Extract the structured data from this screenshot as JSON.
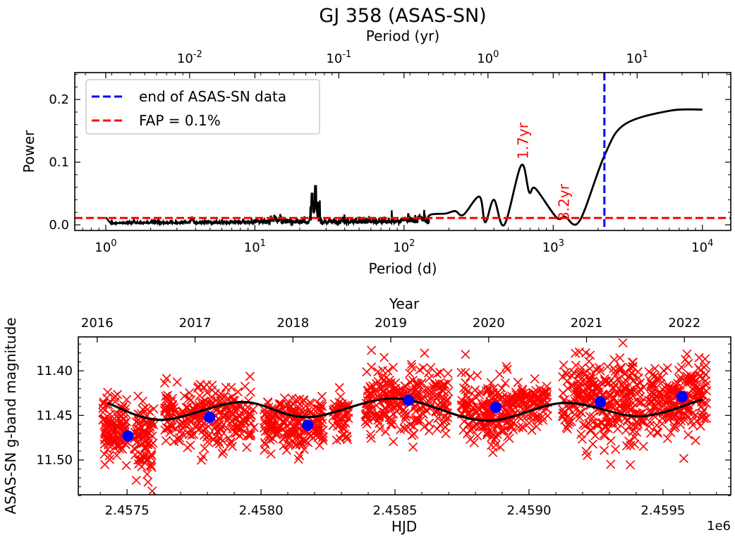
{
  "title": "GJ 358 (ASAS-SN)",
  "colors": {
    "curve": "#000000",
    "fap": "#ff0000",
    "end": "#0000ff",
    "points": "#ff0000",
    "bins": "#0000ff"
  },
  "chart_data": [
    {
      "type": "line",
      "title": "GJ 358 (ASAS-SN)",
      "xlabel": "Period (d)",
      "xlabel_top": "Period (yr)",
      "ylabel": "Power",
      "xscale": "log",
      "xlim": [
        0.62,
        15500
      ],
      "ylim": [
        -0.009,
        0.243
      ],
      "x_ticks_exp": [
        0,
        1,
        2,
        3,
        4
      ],
      "x_top_ticks_exp": [
        -2,
        -1,
        0,
        1
      ],
      "y_ticks": [
        "0.0",
        "0.1",
        "0.2"
      ],
      "y_tick_values": [
        0.0,
        0.1,
        0.2
      ],
      "power_curve": [
        [
          1,
          0.012
        ],
        [
          1.1,
          0.002
        ],
        [
          3.8,
          0.008
        ],
        [
          14,
          0.01
        ],
        [
          24,
          0.05
        ],
        [
          25.5,
          0.062
        ],
        [
          150,
          0.016
        ],
        [
          190,
          0.018
        ],
        [
          220,
          0.022
        ],
        [
          250,
          0.016
        ],
        [
          320,
          0.045
        ],
        [
          350,
          0.004
        ],
        [
          400,
          0.04
        ],
        [
          470,
          0.0
        ],
        [
          610,
          0.095
        ],
        [
          690,
          0.052
        ],
        [
          760,
          0.058
        ],
        [
          1050,
          0.012
        ],
        [
          1200,
          0.013
        ],
        [
          1500,
          0.006
        ],
        [
          2200,
          0.11
        ],
        [
          3000,
          0.16
        ],
        [
          6000,
          0.182
        ],
        [
          10000,
          0.184
        ]
      ],
      "fap_level": 0.011,
      "end_of_data_period_d": 2203,
      "legend": {
        "position": "top-left",
        "entries": [
          "end of ASAS-SN data",
          "FAP = 0.1%"
        ]
      },
      "annotations": [
        {
          "text": "1.7yr",
          "period_d": 620
        },
        {
          "text": "3.2yr",
          "period_d": 1170
        }
      ]
    },
    {
      "type": "scatter",
      "xlabel": "HJD",
      "xlabel_top": "Year",
      "ylabel": "ASAS-SN g-band magnitude",
      "offset_label": "1e6",
      "xlim": [
        2457318,
        2459753
      ],
      "ylim": [
        11.539,
        11.362
      ],
      "x_ticks": [
        "2.4575",
        "2.4580",
        "2.4585",
        "2.4590",
        "2.4595"
      ],
      "x_tick_values": [
        2457500,
        2458000,
        2458500,
        2459000,
        2459500
      ],
      "year_ticks": [
        "2016",
        "2017",
        "2018",
        "2019",
        "2020",
        "2021",
        "2022"
      ],
      "y_ticks": [
        "11.40",
        "11.45",
        "11.50"
      ],
      "y_tick_values": [
        11.4,
        11.45,
        11.5
      ],
      "seasons": [
        {
          "start": 2457408,
          "end": 2457500,
          "mean": 11.465,
          "sd": 0.018,
          "n": 110
        },
        {
          "start": 2457526,
          "end": 2457600,
          "mean": 11.475,
          "sd": 0.022,
          "n": 90
        },
        {
          "start": 2457639,
          "end": 2457974,
          "mean": 11.452,
          "sd": 0.017,
          "n": 260
        },
        {
          "start": 2458011,
          "end": 2458232,
          "mean": 11.46,
          "sd": 0.016,
          "n": 200
        },
        {
          "start": 2458268,
          "end": 2458326,
          "mean": 11.452,
          "sd": 0.014,
          "n": 50
        },
        {
          "start": 2458389,
          "end": 2458700,
          "mean": 11.434,
          "sd": 0.019,
          "n": 260
        },
        {
          "start": 2458742,
          "end": 2458953,
          "mean": 11.445,
          "sd": 0.02,
          "n": 190
        },
        {
          "start": 2458958,
          "end": 2459071,
          "mean": 11.437,
          "sd": 0.014,
          "n": 90
        },
        {
          "start": 2459124,
          "end": 2459429,
          "mean": 11.435,
          "sd": 0.025,
          "n": 300
        },
        {
          "start": 2459447,
          "end": 2459663,
          "mean": 11.43,
          "sd": 0.02,
          "n": 220
        }
      ],
      "binned_means": [
        [
          2457503,
          11.473
        ],
        [
          2457808,
          11.452
        ],
        [
          2458174,
          11.461
        ],
        [
          2458550,
          11.433
        ],
        [
          2458876,
          11.441
        ],
        [
          2459266,
          11.435
        ],
        [
          2459571,
          11.429
        ]
      ],
      "model_curve": [
        [
          2457426,
          11.436
        ],
        [
          2457629,
          11.455
        ],
        [
          2457926,
          11.435
        ],
        [
          2458174,
          11.452
        ],
        [
          2458500,
          11.431
        ],
        [
          2458837,
          11.456
        ],
        [
          2459132,
          11.436
        ],
        [
          2459413,
          11.451
        ],
        [
          2459647,
          11.432
        ]
      ]
    }
  ]
}
